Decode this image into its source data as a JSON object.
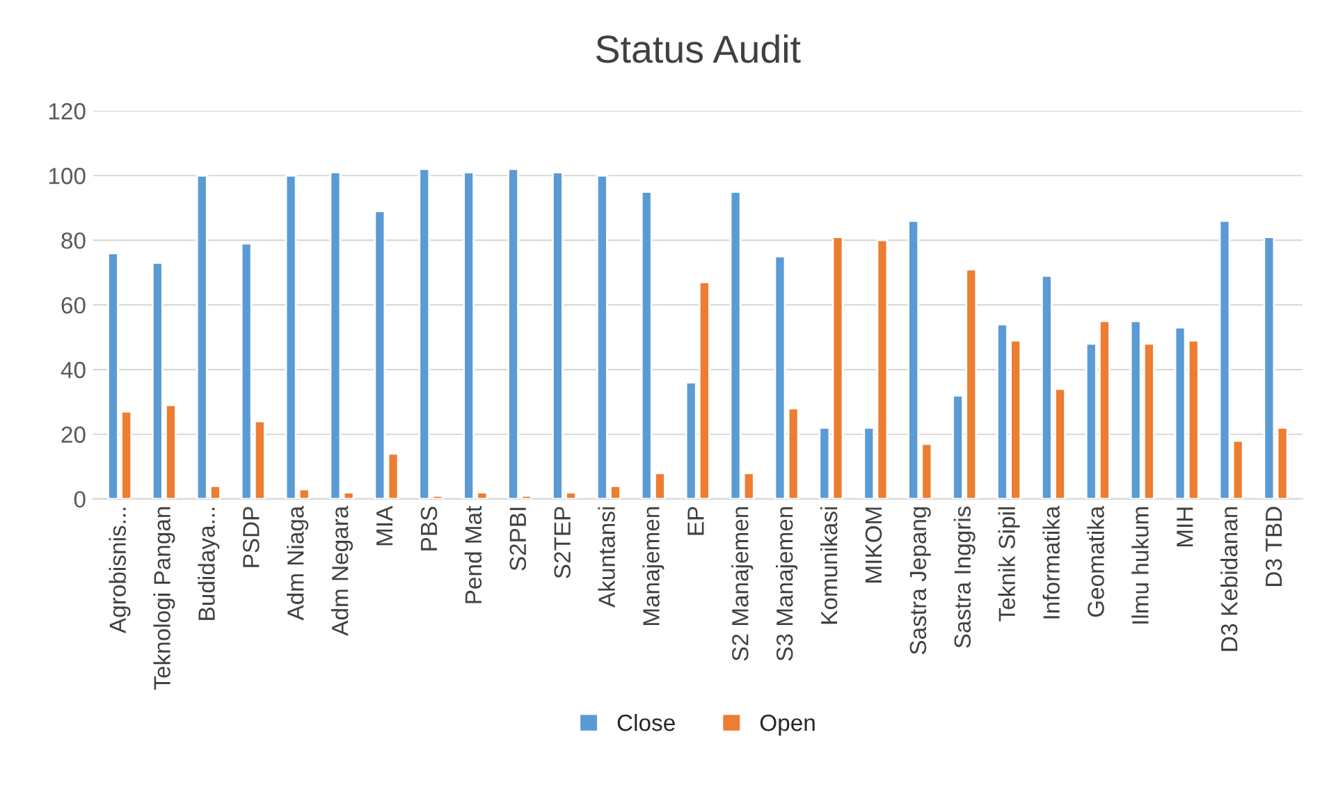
{
  "chart_data": {
    "type": "bar",
    "title": "Status Audit",
    "categories": [
      "Agrobisnis...",
      "Teknologi Pangan",
      "Budidaya...",
      "PSDP",
      "Adm Niaga",
      "Adm Negara",
      "MIA",
      "PBS",
      "Pend Mat",
      "S2PBI",
      "S2TEP",
      "Akuntansi",
      "Manajemen",
      "EP",
      "S2 Manajemen",
      "S3 Manajemen",
      "Komunikasi",
      "MIKOM",
      "Sastra Jepang",
      "Sastra Inggris",
      "Teknik Sipil",
      "Informatika",
      "Geomatika",
      "Ilmu hukum",
      "MIH",
      "D3 Kebidanan",
      "D3 TBD"
    ],
    "series": [
      {
        "name": "Close",
        "color": "#5b9bd5",
        "values": [
          76,
          73,
          100,
          79,
          100,
          101,
          89,
          102,
          101,
          102,
          101,
          100,
          95,
          36,
          95,
          75,
          22,
          22,
          86,
          32,
          54,
          69,
          48,
          55,
          53,
          86,
          81
        ]
      },
      {
        "name": "Open",
        "color": "#ed7d31",
        "values": [
          27,
          29,
          4,
          24,
          3,
          2,
          14,
          1,
          2,
          1,
          2,
          4,
          8,
          67,
          8,
          28,
          81,
          80,
          17,
          71,
          49,
          34,
          55,
          48,
          49,
          18,
          22
        ]
      }
    ],
    "ylim": [
      0,
      120
    ],
    "yticks": [
      0,
      20,
      40,
      60,
      80,
      100,
      120
    ],
    "grid": "y",
    "legend": "bottom"
  }
}
